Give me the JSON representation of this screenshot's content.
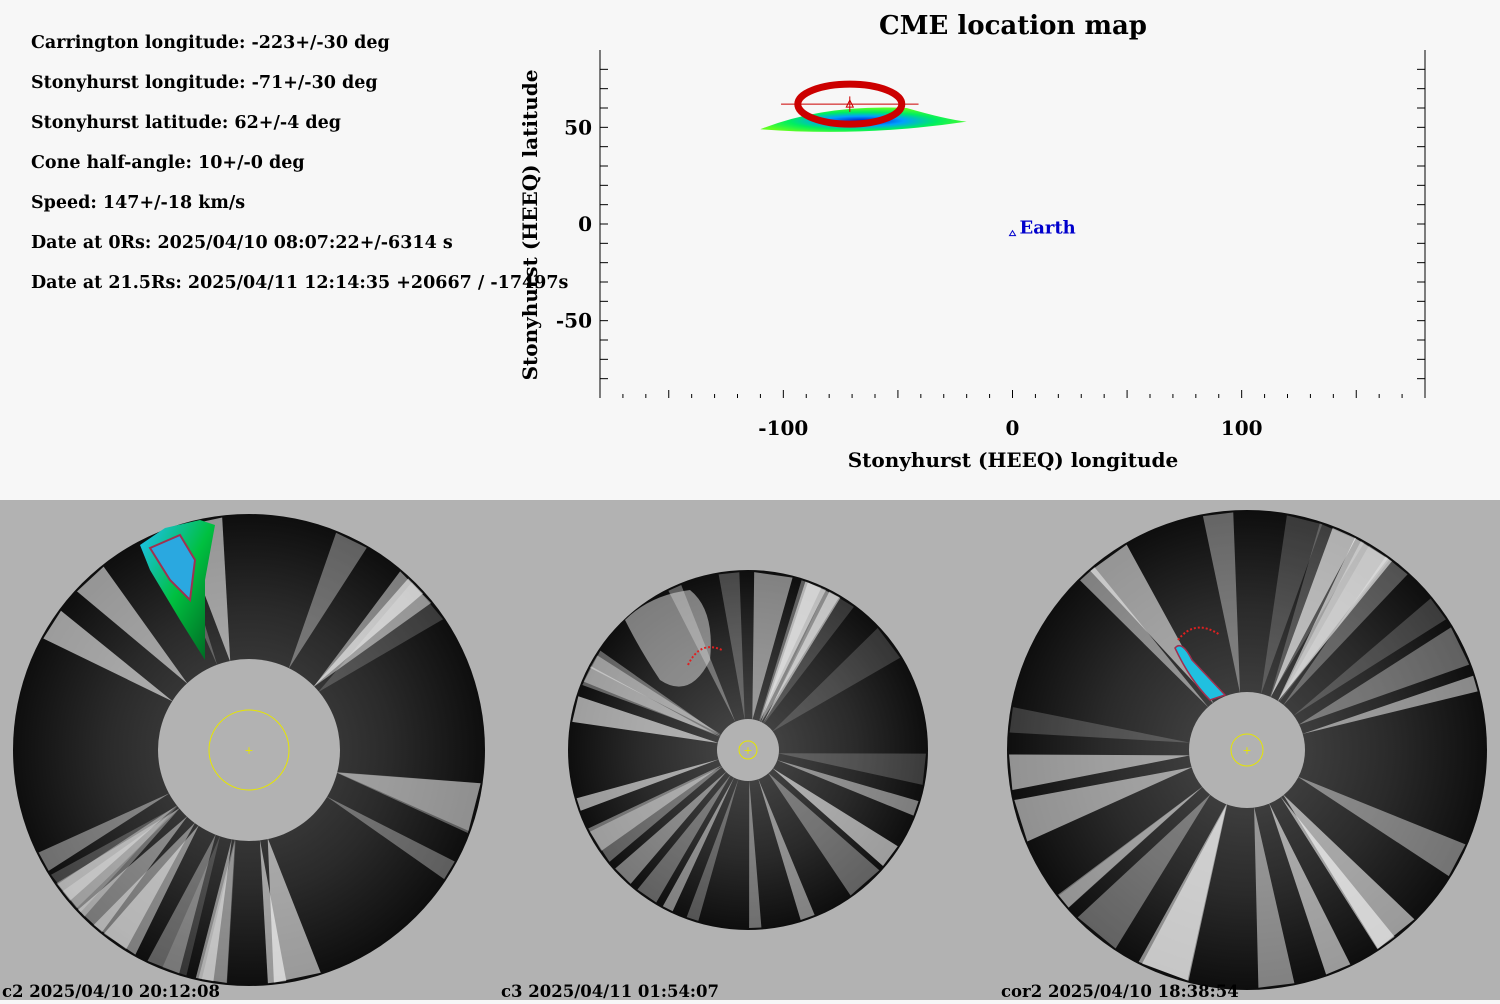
{
  "params": [
    "Carrington longitude: -223+/-30 deg",
    "Stonyhurst longitude: -71+/-30 deg",
    "Stonyhurst latitude: 62+/-4 deg",
    "Cone half-angle: 10+/-0 deg",
    "Speed: 147+/-18 km/s",
    "Date at 0Rs: 2025/04/10 08:07:22+/-6314 s",
    "Date at 21.5Rs: 2025/04/11 12:14:35 +20667 / -17497s"
  ],
  "chart_data": {
    "type": "scatter",
    "title": "CME location map",
    "xlabel": "Stonyhurst (HEEQ) longitude",
    "ylabel": "Stonyhurst (HEEQ) latitude",
    "xlim": [
      -180,
      180
    ],
    "ylim": [
      -90,
      90
    ],
    "xticks": [
      -100,
      0,
      100
    ],
    "yticks": [
      50,
      0,
      -50
    ],
    "points": [
      {
        "name": "Earth",
        "x": 0,
        "y": -5,
        "color": "#0000cc"
      },
      {
        "name": "",
        "x": -71,
        "y": 62,
        "xerr": 30,
        "yerr": 4,
        "color": "#cc0000"
      }
    ],
    "cme_blob": {
      "x_range": [
        -110,
        -20
      ],
      "y_range": [
        48,
        60
      ]
    },
    "grid": false,
    "legend": "none"
  },
  "images": [
    {
      "caption": "c2 2025/04/10 20:12:08"
    },
    {
      "caption": "c3 2025/04/11 01:54:07"
    },
    {
      "caption": "cor2 2025/04/10 18:38:54"
    }
  ],
  "colors": {
    "panel_bg": "#f7f7f7",
    "image_bg": "#b2b2b2",
    "earth": "#0000cc",
    "fit": "#dd0000",
    "sun_outline": "#e6e600"
  }
}
